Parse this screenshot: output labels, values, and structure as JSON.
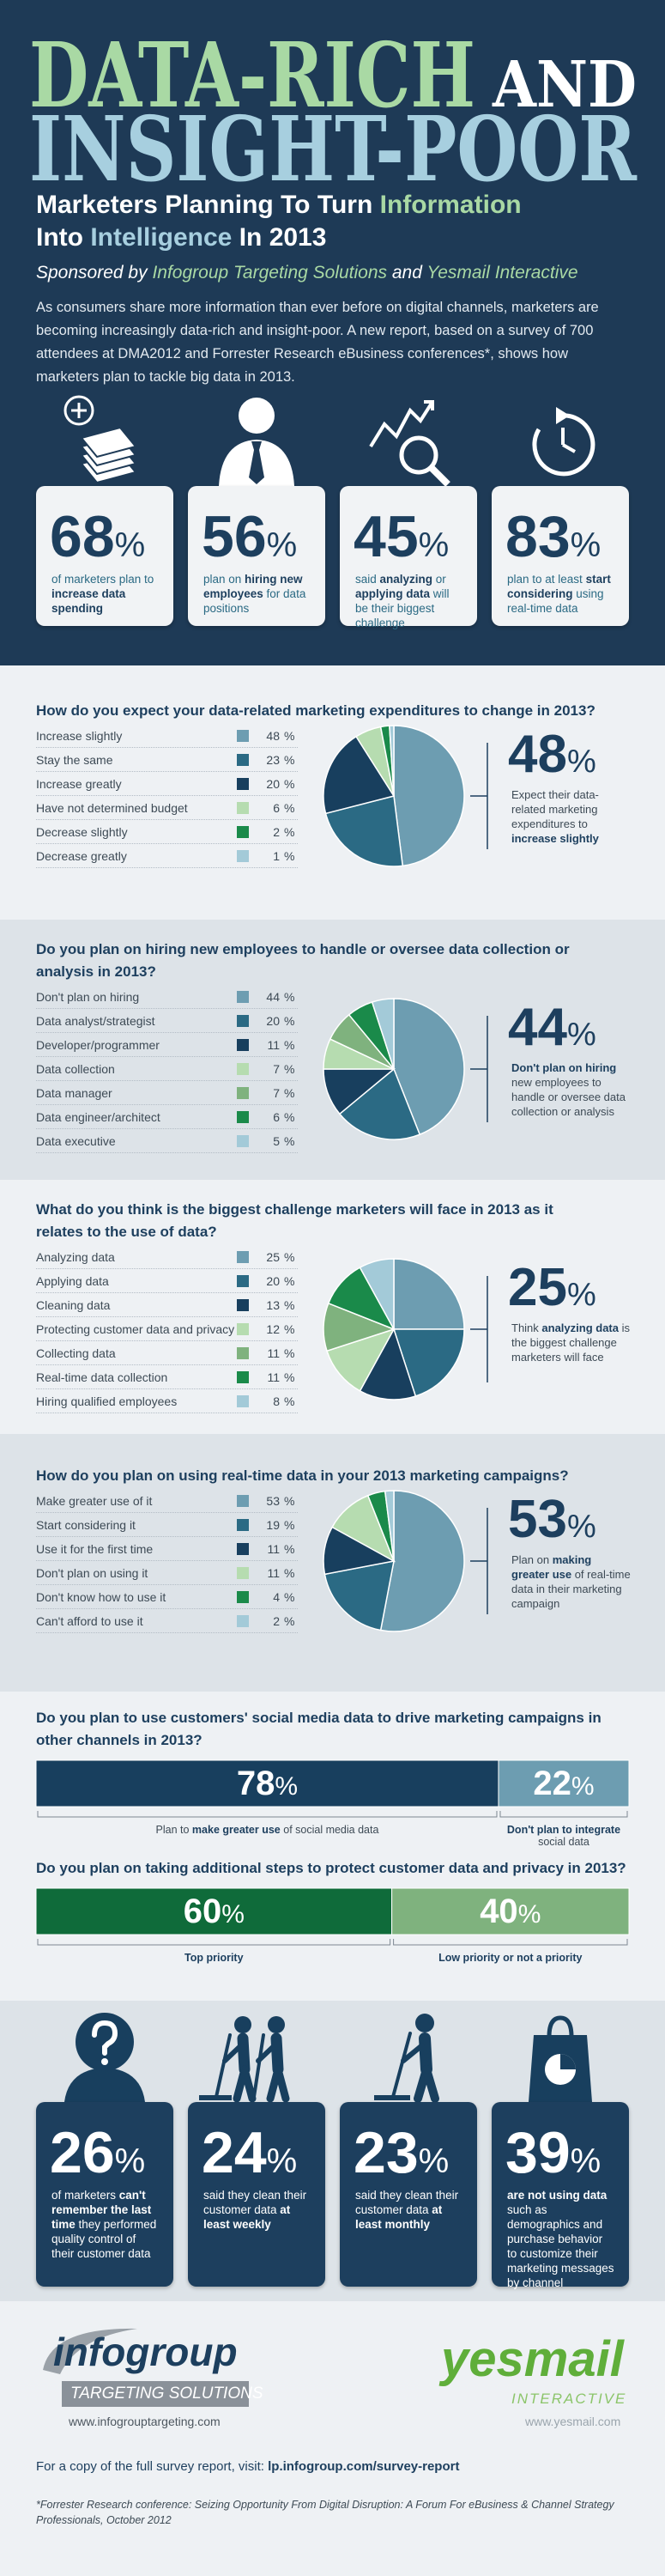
{
  "header": {
    "title_line1": [
      {
        "text": "DATA-RICH",
        "color": "#a9d9a4"
      },
      {
        "text": "AND",
        "color": "#ffffff"
      }
    ],
    "title_line2": {
      "text": "INSIGHT-POOR",
      "color": "#a7cfdf"
    },
    "subtitle": [
      [
        {
          "text": "Marketers Planning To Turn ",
          "color": "#ffffff"
        },
        {
          "text": "Information",
          "color": "#a9d9a4"
        }
      ],
      [
        {
          "text": "Into ",
          "color": "#ffffff"
        },
        {
          "text": "Intelligence",
          "color": "#a7cfdf"
        },
        {
          "text": " In 2013",
          "color": "#ffffff"
        }
      ]
    ],
    "sponsor": [
      {
        "text": "Sponsored by ",
        "color": "#ffffff"
      },
      {
        "text": "Infogroup Targeting Solutions",
        "color": "#a9d9a4"
      },
      {
        "text": " and ",
        "color": "#ffffff"
      },
      {
        "text": "Yesmail Interactive",
        "color": "#a9d9a4"
      }
    ],
    "intro": "As consumers share more information than ever before on digital channels, marketers are becoming increasingly data-rich and insight-poor. A new report, based on a survey of 700 attendees at DMA2012 and Forrester Research eBusiness conferences*, shows how marketers plan to tackle big data in 2013."
  },
  "stats": [
    {
      "value": 68,
      "unit": "%",
      "text": [
        {
          "text": "of marketers plan to ",
          "bold": false
        },
        {
          "text": "increase data spending",
          "bold": true
        }
      ]
    },
    {
      "value": 56,
      "unit": "%",
      "text": [
        {
          "text": "plan on ",
          "bold": false
        },
        {
          "text": "hiring new employees",
          "bold": true
        },
        {
          "text": " for data positions",
          "bold": false
        }
      ]
    },
    {
      "value": 45,
      "unit": "%",
      "text": [
        {
          "text": "said ",
          "bold": false
        },
        {
          "text": "analyzing",
          "bold": true
        },
        {
          "text": " or ",
          "bold": false
        },
        {
          "text": "applying data",
          "bold": true
        },
        {
          "text": " will be their biggest challenge",
          "bold": false
        }
      ]
    },
    {
      "value": 83,
      "unit": "%",
      "text": [
        {
          "text": "plan to at least ",
          "bold": false
        },
        {
          "text": "start considering",
          "bold": true
        },
        {
          "text": " using real-time data",
          "bold": false
        }
      ]
    }
  ],
  "chart_data": [
    {
      "type": "pie",
      "title": "How do you expect your data-related marketing expenditures to change in 2013?",
      "categories": [
        "Increase slightly",
        "Stay the same",
        "Increase greatly",
        "Have not determined budget",
        "Decrease slightly",
        "Decrease greatly"
      ],
      "values": [
        48,
        23,
        20,
        6,
        2,
        1
      ],
      "colors": [
        "#6d9db1",
        "#2b6a84",
        "#183f5e",
        "#b6dcb0",
        "#1a8a4a",
        "#a3cad8"
      ],
      "unit": "%",
      "callout": {
        "value": 48,
        "unit": "%",
        "text": [
          {
            "text": "Expect their data-related marketing expenditures to ",
            "bold": false
          },
          {
            "text": "increase slightly",
            "bold": true
          }
        ]
      }
    },
    {
      "type": "pie",
      "title": "Do you plan on hiring new employees to handle or oversee data collection or analysis in 2013?",
      "categories": [
        "Don't plan on hiring",
        "Data analyst/strategist",
        "Developer/programmer",
        "Data collection",
        "Data manager",
        "Data engineer/architect",
        "Data executive"
      ],
      "values": [
        44,
        20,
        11,
        7,
        7,
        6,
        5
      ],
      "colors": [
        "#6d9db1",
        "#2b6a84",
        "#183f5e",
        "#b6dcb0",
        "#7fb27e",
        "#1a8a4a",
        "#a3cad8"
      ],
      "unit": "%",
      "callout": {
        "value": 44,
        "unit": "%",
        "text": [
          {
            "text": "Don't plan on hiring",
            "bold": true
          },
          {
            "text": " new employees to handle or oversee data collection or analysis",
            "bold": false
          }
        ]
      }
    },
    {
      "type": "pie",
      "title": "What do you think is the biggest challenge marketers will face in 2013 as it relates to the use of data?",
      "categories": [
        "Analyzing data",
        "Applying data",
        "Cleaning data",
        "Protecting customer data and privacy",
        "Collecting data",
        "Real-time data collection",
        "Hiring qualified employees"
      ],
      "values": [
        25,
        20,
        13,
        12,
        11,
        11,
        8
      ],
      "colors": [
        "#6d9db1",
        "#2b6a84",
        "#183f5e",
        "#b6dcb0",
        "#7fb27e",
        "#1a8a4a",
        "#a3cad8"
      ],
      "unit": "%",
      "callout": {
        "value": 25,
        "unit": "%",
        "text": [
          {
            "text": "Think ",
            "bold": false
          },
          {
            "text": "analyzing data",
            "bold": true
          },
          {
            "text": " is the biggest challenge marketers will face",
            "bold": false
          }
        ]
      }
    },
    {
      "type": "pie",
      "title": "How do you plan on using real-time data in your 2013 marketing campaigns?",
      "categories": [
        "Make greater use of it",
        "Start considering it",
        "Use it for the first time",
        "Don't plan on using it",
        "Don't know how to use it",
        "Can't afford to use it"
      ],
      "values": [
        53,
        19,
        11,
        11,
        4,
        2
      ],
      "colors": [
        "#6d9db1",
        "#2b6a84",
        "#183f5e",
        "#b6dcb0",
        "#1a8a4a",
        "#a3cad8"
      ],
      "unit": "%",
      "callout": {
        "value": 53,
        "unit": "%",
        "text": [
          {
            "text": "Plan on ",
            "bold": false
          },
          {
            "text": "making greater use",
            "bold": true
          },
          {
            "text": " of real-time data in their marketing campaign",
            "bold": false
          }
        ]
      }
    },
    {
      "type": "stacked_bar",
      "title": "Do you plan to use customers' social media data to drive marketing campaigns in other channels in 2013?",
      "xlim": [
        0,
        100
      ],
      "unit": "%",
      "series": [
        {
          "label": [
            {
              "text": "Plan to ",
              "bold": false
            },
            {
              "text": "make greater use",
              "bold": true
            },
            {
              "text": " of social media data",
              "bold": false
            }
          ],
          "color": "#183f5e",
          "values": [
            78
          ]
        },
        {
          "label": [
            {
              "text": "Don't plan to integrate",
              "bold": true
            },
            {
              "text": " social data",
              "bold": false
            }
          ],
          "color": "#6d9db1",
          "values": [
            22
          ]
        }
      ]
    },
    {
      "type": "stacked_bar",
      "title": "Do you plan on taking additional steps to protect customer data and privacy in 2013?",
      "xlim": [
        0,
        100
      ],
      "unit": "%",
      "series": [
        {
          "label": [
            {
              "text": "Top priority",
              "bold": true
            }
          ],
          "color": "#0f6b3a",
          "values": [
            60
          ]
        },
        {
          "label": [
            {
              "text": "Low priority or not a priority",
              "bold": true
            }
          ],
          "color": "#7fb27e",
          "values": [
            40
          ]
        }
      ]
    }
  ],
  "quality_stats": [
    {
      "value": 26,
      "unit": "%",
      "text": [
        {
          "text": "of marketers ",
          "bold": false
        },
        {
          "text": "can't remember the last time",
          "bold": true
        },
        {
          "text": " they performed quality control of their customer data",
          "bold": false
        }
      ]
    },
    {
      "value": 24,
      "unit": "%",
      "text": [
        {
          "text": "said they clean their customer data ",
          "bold": false
        },
        {
          "text": "at least weekly",
          "bold": true
        }
      ]
    },
    {
      "value": 23,
      "unit": "%",
      "text": [
        {
          "text": "said they clean their customer data ",
          "bold": false
        },
        {
          "text": "at least monthly",
          "bold": true
        }
      ]
    },
    {
      "value": 39,
      "unit": "%",
      "text": [
        {
          "text": "are not using data",
          "bold": true
        },
        {
          "text": " such as demographics and purchase behavior to customize their marketing messages by channel",
          "bold": false
        }
      ]
    }
  ],
  "footer": {
    "infogroup": {
      "name": "infogroup",
      "tagline": "TARGETING SOLUTIONS",
      "url": "www.infogrouptargeting.com"
    },
    "yesmail": {
      "name": "yesmail",
      "tagline": "INTERACTIVE",
      "url": "www.yesmail.com"
    },
    "report": [
      {
        "text": "For a copy of the full survey report, visit:  ",
        "bold": false
      },
      {
        "text": "lp.infogroup.com/survey-report",
        "bold": true
      }
    ],
    "footnote": "*Forrester Research conference: Seizing Opportunity From Digital Disruption: A Forum For eBusiness & Channel Strategy Professionals, October 2012"
  }
}
